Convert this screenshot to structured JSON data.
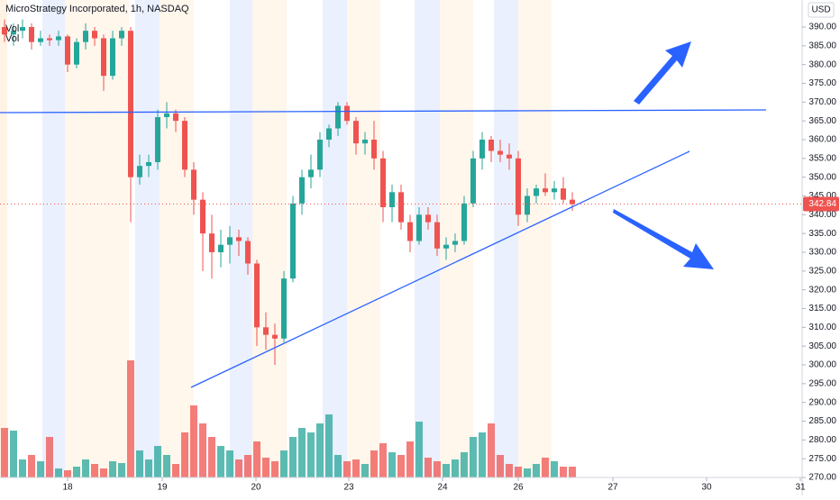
{
  "chart_data": {
    "type": "candlestick",
    "title": "MicroStrategy Incorporated, 1h, NASDAQ",
    "legend_labels": [
      "Vol",
      "Vol"
    ],
    "currency": "USD",
    "up_color": "#26a69a",
    "down_color": "#ef5350",
    "ohlc": [
      [
        390,
        392,
        386,
        388
      ],
      [
        388,
        391,
        385,
        389
      ],
      [
        389,
        392,
        387,
        390
      ],
      [
        390,
        391,
        384,
        386
      ],
      [
        386,
        389,
        385,
        387
      ],
      [
        387,
        388,
        385,
        386.5
      ],
      [
        386.5,
        389,
        385,
        387.5
      ],
      [
        387.5,
        388,
        378,
        380
      ],
      [
        380,
        387,
        379,
        386
      ],
      [
        386,
        391,
        384,
        389
      ],
      [
        389,
        390,
        385,
        387
      ],
      [
        387,
        388,
        373,
        377
      ],
      [
        377,
        389,
        376,
        387
      ],
      [
        387,
        390,
        385,
        389
      ],
      [
        389,
        390,
        338,
        350
      ],
      [
        350,
        356,
        348,
        353
      ],
      [
        353,
        356,
        350,
        354
      ],
      [
        354,
        368,
        352,
        366
      ],
      [
        366,
        370,
        363,
        367
      ],
      [
        367,
        368,
        362,
        365
      ],
      [
        365,
        366,
        350,
        352
      ],
      [
        352,
        354,
        340,
        344
      ],
      [
        344,
        346,
        325,
        335
      ],
      [
        335,
        340,
        323,
        330
      ],
      [
        330,
        336,
        326,
        332
      ],
      [
        332,
        337,
        327,
        334
      ],
      [
        334,
        336,
        329,
        333
      ],
      [
        333,
        334,
        324,
        327
      ],
      [
        327,
        328,
        305,
        310
      ],
      [
        310,
        314,
        304,
        308
      ],
      [
        308,
        311,
        300,
        307
      ],
      [
        307,
        325,
        306,
        323
      ],
      [
        323,
        345,
        322,
        343
      ],
      [
        343,
        352,
        340,
        350
      ],
      [
        350,
        356,
        347,
        352
      ],
      [
        352,
        362,
        350,
        360
      ],
      [
        360,
        364,
        358,
        363
      ],
      [
        363,
        370,
        361,
        369
      ],
      [
        369,
        370,
        364,
        365
      ],
      [
        365,
        366,
        356,
        359
      ],
      [
        359,
        362,
        356,
        360
      ],
      [
        360,
        365,
        352,
        355
      ],
      [
        355,
        357,
        338,
        342
      ],
      [
        342,
        348,
        338,
        346
      ],
      [
        346,
        348,
        336,
        338
      ],
      [
        338,
        340,
        330,
        333
      ],
      [
        333,
        342,
        332,
        340
      ],
      [
        340,
        342,
        336,
        338
      ],
      [
        338,
        340,
        329,
        331
      ],
      [
        331,
        334,
        328,
        332
      ],
      [
        332,
        335,
        330,
        333
      ],
      [
        333,
        345,
        332,
        343
      ],
      [
        343,
        357,
        342,
        355
      ],
      [
        355,
        362,
        352,
        360
      ],
      [
        360,
        361,
        354,
        357
      ],
      [
        357,
        360,
        354,
        356
      ],
      [
        356,
        359,
        352,
        355
      ],
      [
        355,
        357,
        337,
        340
      ],
      [
        340,
        347,
        338,
        345
      ],
      [
        345,
        348,
        343,
        347
      ],
      [
        347,
        351,
        345,
        346
      ],
      [
        346,
        349,
        344,
        347
      ],
      [
        347,
        350,
        343,
        344
      ],
      [
        344,
        346,
        341,
        342.84
      ]
    ],
    "volume": [
      55,
      52,
      20,
      25,
      18,
      45,
      10,
      8,
      12,
      20,
      15,
      10,
      18,
      16,
      130,
      30,
      20,
      35,
      25,
      15,
      50,
      80,
      60,
      45,
      35,
      30,
      20,
      25,
      40,
      22,
      18,
      30,
      45,
      55,
      50,
      60,
      70,
      25,
      18,
      20,
      15,
      30,
      38,
      28,
      25,
      40,
      62,
      22,
      18,
      15,
      20,
      28,
      45,
      50,
      60,
      25,
      15,
      12,
      10,
      15,
      22,
      18,
      12,
      12
    ],
    "last_price": 342.84,
    "ylim": [
      265.2,
      397.2
    ],
    "yticks": [
      {
        "value": 270,
        "label": "270.00"
      },
      {
        "value": 275,
        "label": "275.00"
      },
      {
        "value": 280,
        "label": "280.00"
      },
      {
        "value": 285,
        "label": "285.00"
      },
      {
        "value": 290,
        "label": "290.00"
      },
      {
        "value": 295,
        "label": "295.00"
      },
      {
        "value": 300,
        "label": "300.00"
      },
      {
        "value": 305,
        "label": "305.00"
      },
      {
        "value": 310,
        "label": "310.00"
      },
      {
        "value": 315,
        "label": "315.00"
      },
      {
        "value": 320,
        "label": "320.00"
      },
      {
        "value": 325,
        "label": "325.00"
      },
      {
        "value": 330,
        "label": "330.00"
      },
      {
        "value": 335,
        "label": "335.00"
      },
      {
        "value": 340,
        "label": "340.00"
      },
      {
        "value": 345,
        "label": "345.00"
      },
      {
        "value": 350,
        "label": "350.00"
      },
      {
        "value": 355,
        "label": "355.00"
      },
      {
        "value": 360,
        "label": "360.00"
      },
      {
        "value": 365,
        "label": "365.00"
      },
      {
        "value": 370,
        "label": "370.00"
      },
      {
        "value": 375,
        "label": "375.00"
      },
      {
        "value": 380,
        "label": "380.00"
      },
      {
        "value": 385,
        "label": "385.00"
      },
      {
        "value": 390,
        "label": "390.00"
      }
    ],
    "xlim": [
      -0.5,
      88.3
    ],
    "xticks": [
      {
        "value": 7,
        "label": "18"
      },
      {
        "value": 17.5,
        "label": "19"
      },
      {
        "value": 27.9,
        "label": "20"
      },
      {
        "value": 38.2,
        "label": "23"
      },
      {
        "value": 48.6,
        "label": "24"
      },
      {
        "value": 57,
        "label": "26"
      },
      {
        "value": 67.5,
        "label": "27"
      },
      {
        "value": 77.9,
        "label": "30"
      },
      {
        "value": 88.3,
        "label": "31"
      }
    ],
    "grid": false
  }
}
